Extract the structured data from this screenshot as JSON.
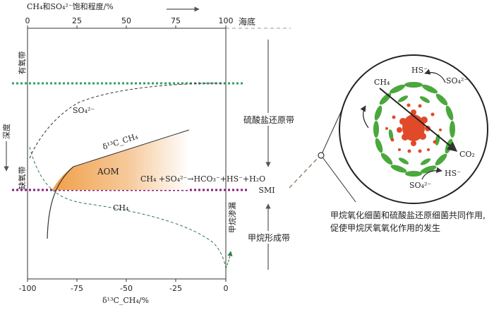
{
  "top_axis": {
    "title": "CH₄和SO₄²⁻饱和程度/%",
    "ticks": [
      "0",
      "25",
      "50",
      "75",
      "100"
    ]
  },
  "bottom_axis": {
    "title": "δ¹³C_CH₄/%",
    "ticks": [
      "-100",
      "-75",
      "-50",
      "-25",
      "0"
    ]
  },
  "labels": {
    "seafloor": "海底",
    "depth": "深度",
    "oxic_zone": "有氧带",
    "anoxic_zone": "缺氧带",
    "so4_curve": "SO₄²⁻",
    "ch4_curve": "CH₄",
    "d13c_curve": "δ¹³C_CH₄",
    "aom": "AOM",
    "reaction": "CH₄ +SO₄²⁻→HCO₃⁻+HS⁻+H₂O",
    "sulfate_reduction_zone": "硫酸盐还原带",
    "smi": "SMI",
    "methanogenesis_zone": "甲烷形成带",
    "methane_seep": "甲烷渗漏"
  },
  "circle_labels": {
    "ch4": "CH₄",
    "hs_top": "HS⁻",
    "so4_top": "SO₄²⁻",
    "co2": "CO₂",
    "hs_bottom": "HS⁻",
    "so4_bottom": "SO₄²⁻"
  },
  "caption": "甲烷氧化细菌和硫酸盐还原细菌共同作用,促使甲烷厌氧氧化作用的发生",
  "colors": {
    "oxic_line": "#3a9a6a",
    "smi_line": "#8a1e7a",
    "aom_fill": "#f0a050",
    "green_bacteria": "#4aa83c",
    "red_bacteria": "#e04a28"
  }
}
